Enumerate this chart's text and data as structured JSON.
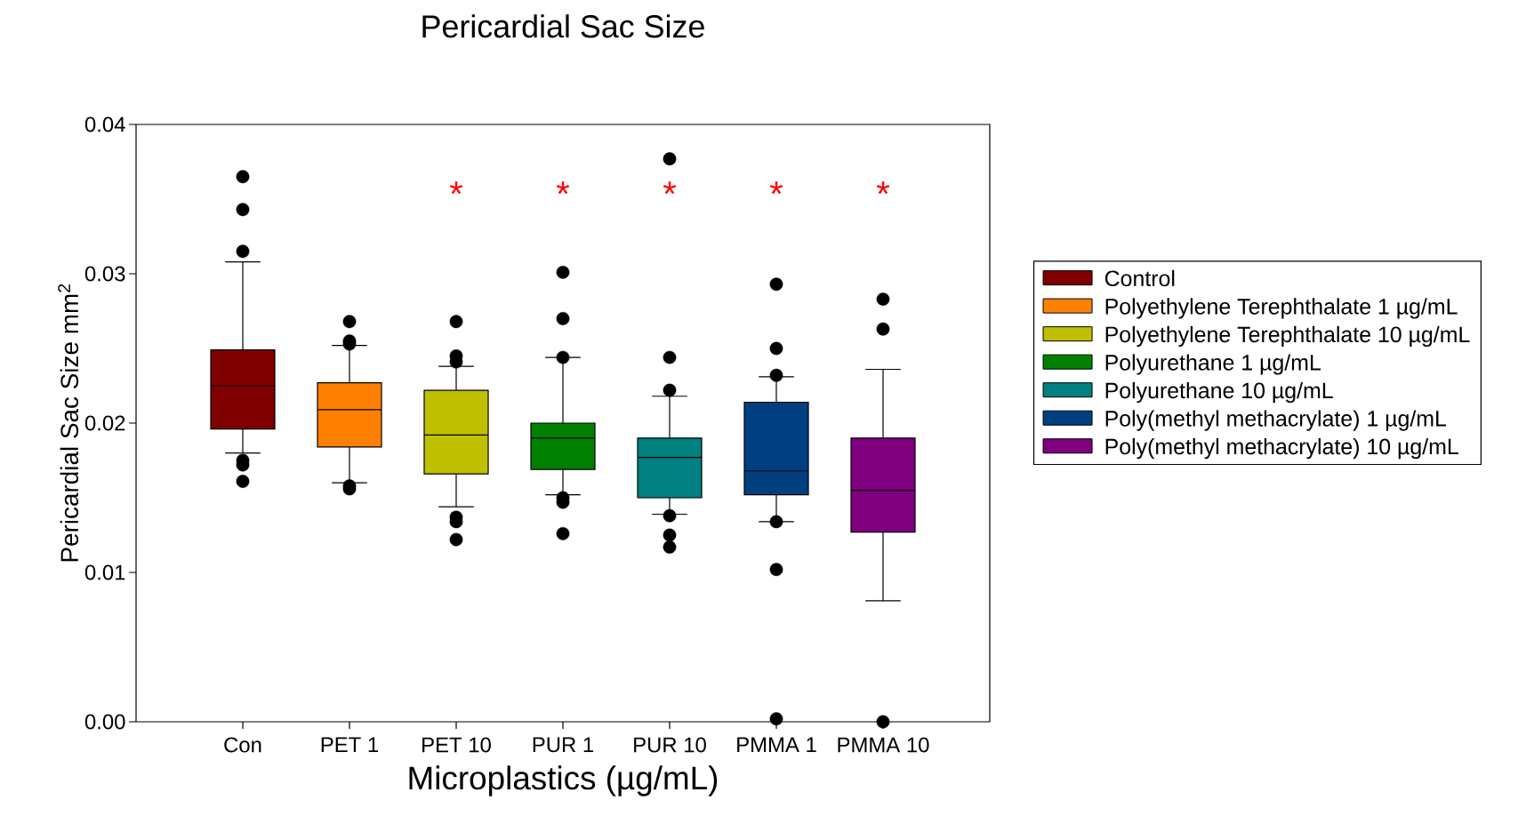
{
  "chart_data": {
    "type": "box",
    "title": "Pericardial Sac Size",
    "xlabel": "Microplastics (µg/mL)",
    "ylabel": "Pericardial Sac Size mm$^{2}$",
    "categories": [
      "Con",
      "PET 1",
      "PET 10",
      "PUR 1",
      "PUR 10",
      "PMMA 1",
      "PMMA 10"
    ],
    "ylim": [
      0,
      0.04
    ],
    "yticks": [
      {
        "value": 0,
        "label": "0.00"
      },
      {
        "value": 0.01,
        "label": "0.01"
      },
      {
        "value": 0.02,
        "label": "0.02"
      },
      {
        "value": 0.03,
        "label": "0.03"
      },
      {
        "value": 0.04,
        "label": "0.04"
      }
    ],
    "legend": "right",
    "grid": false,
    "series": [
      {
        "name": "Control",
        "color": "#800000",
        "x": [
          "Con"
        ],
        "boxes": [
          {
            "low": 0.018,
            "q1": 0.0196,
            "median": 0.0225,
            "q3": 0.0249,
            "high": 0.0308,
            "outliers": [
              0.0365,
              0.0343,
              0.0315,
              0.0175,
              0.0172,
              0.0161
            ]
          }
        ]
      },
      {
        "name": "Polyethylene Terephthalate 1 µg/mL",
        "color": "#ff8000",
        "x": [
          "PET 1"
        ],
        "boxes": [
          {
            "low": 0.016,
            "q1": 0.0184,
            "median": 0.0209,
            "q3": 0.0227,
            "high": 0.0252,
            "outliers": [
              0.0268,
              0.0255,
              0.0253,
              0.0158,
              0.0156
            ]
          }
        ]
      },
      {
        "name": "Polyethylene Terephthalate 10 µg/mL",
        "color": "#c0c000",
        "x": [
          "PET 10"
        ],
        "boxes": [
          {
            "low": 0.0144,
            "q1": 0.0166,
            "median": 0.0192,
            "q3": 0.0222,
            "high": 0.0238,
            "outliers": [
              0.0268,
              0.0245,
              0.0241,
              0.0137,
              0.0134,
              0.0122
            ]
          }
        ]
      },
      {
        "name": "Polyurethane 1 µg/mL",
        "color": "#008000",
        "x": [
          "PUR 1"
        ],
        "boxes": [
          {
            "low": 0.0152,
            "q1": 0.0169,
            "median": 0.019,
            "q3": 0.02,
            "high": 0.0244,
            "outliers": [
              0.0301,
              0.027,
              0.0244,
              0.015,
              0.0147,
              0.0126
            ]
          }
        ]
      },
      {
        "name": "Polyurethane 10 µg/mL",
        "color": "#008080",
        "x": [
          "PUR 10"
        ],
        "boxes": [
          {
            "low": 0.0139,
            "q1": 0.015,
            "median": 0.0177,
            "q3": 0.019,
            "high": 0.0218,
            "outliers": [
              0.0377,
              0.0244,
              0.0222,
              0.0138,
              0.0125,
              0.0117
            ]
          }
        ]
      },
      {
        "name": "Poly(methyl methacrylate) 1 µg/mL",
        "color": "#004080",
        "x": [
          "PMMA 1"
        ],
        "boxes": [
          {
            "low": 0.0134,
            "q1": 0.0152,
            "median": 0.0168,
            "q3": 0.0214,
            "high": 0.0231,
            "outliers": [
              0.0293,
              0.025,
              0.0232,
              0.0134,
              0.0102,
              0.0002
            ]
          }
        ]
      },
      {
        "name": "Poly(methyl methacrylate) 10 µg/mL",
        "color": "#800080",
        "x": [
          "PMMA 10"
        ],
        "boxes": [
          {
            "low": 0.0081,
            "q1": 0.0127,
            "median": 0.0155,
            "q3": 0.019,
            "high": 0.0236,
            "outliers": [
              0.0283,
              0.0263,
              0.0
            ]
          }
        ]
      }
    ],
    "annotations": [
      "*",
      "*",
      "*",
      "*",
      "*"
    ]
  }
}
